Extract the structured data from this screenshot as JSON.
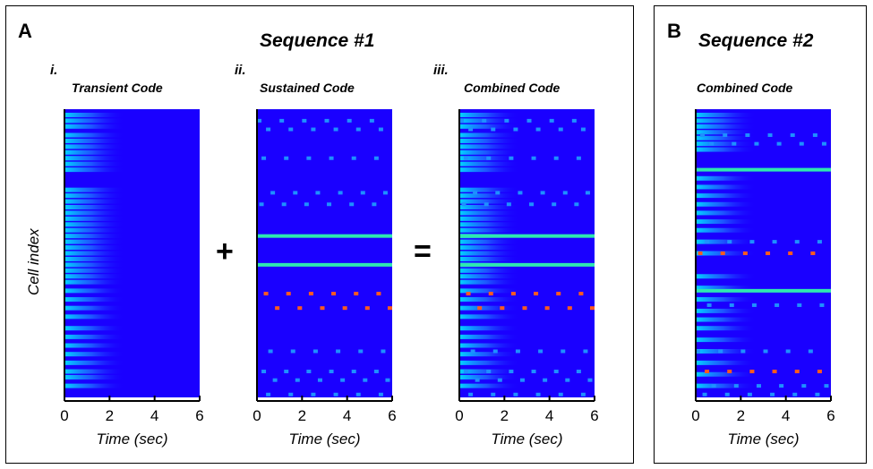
{
  "panels": {
    "a": {
      "letter": "A",
      "title": "Sequence #1"
    },
    "b": {
      "letter": "B",
      "title": "Sequence #2"
    }
  },
  "operators": {
    "plus": "+",
    "equals": "="
  },
  "ylabel": "Cell index",
  "colors": {
    "background": "#1a00ff",
    "transient": "#00e0ff",
    "line": "#2ee8b0",
    "dot_blue": "#1e90ff",
    "dot_red": "#ff5a1f"
  },
  "chart_data": [
    {
      "type": "heatmap",
      "roman": "i.",
      "title": "Transient Code",
      "xlabel": "Time (sec)",
      "xlim": [
        0,
        6
      ],
      "xticks": [
        0,
        2,
        4,
        6
      ],
      "transient_rows": [
        0.02,
        0.04,
        0.06,
        0.09,
        0.11,
        0.13,
        0.15,
        0.17,
        0.19,
        0.21,
        0.28,
        0.3,
        0.32,
        0.34,
        0.36,
        0.38,
        0.4,
        0.42,
        0.44,
        0.46,
        0.48,
        0.5,
        0.52,
        0.54,
        0.56,
        0.58,
        0.6,
        0.63,
        0.66,
        0.69,
        0.72,
        0.76,
        0.79,
        0.82,
        0.85,
        0.88,
        0.91,
        0.93,
        0.96
      ],
      "sustained_lines": [],
      "dot_rows": []
    },
    {
      "type": "heatmap",
      "roman": "ii.",
      "title": "Sustained Code",
      "xlabel": "Time (sec)",
      "xlim": [
        0,
        6
      ],
      "xticks": [
        0,
        2,
        4,
        6
      ],
      "transient_rows": [],
      "sustained_lines": [
        0.44,
        0.54
      ],
      "dot_rows": [
        {
          "y": 0.04,
          "color": "blue",
          "offset": 0.1
        },
        {
          "y": 0.07,
          "color": "blue",
          "offset": 0.5
        },
        {
          "y": 0.17,
          "color": "blue",
          "offset": 0.3
        },
        {
          "y": 0.29,
          "color": "blue",
          "offset": 0.7
        },
        {
          "y": 0.33,
          "color": "blue",
          "offset": 0.2
        },
        {
          "y": 0.64,
          "color": "red",
          "offset": 0.4
        },
        {
          "y": 0.69,
          "color": "red",
          "offset": 0.9
        },
        {
          "y": 0.84,
          "color": "blue",
          "offset": 0.6
        },
        {
          "y": 0.91,
          "color": "blue",
          "offset": 0.3
        },
        {
          "y": 0.94,
          "color": "blue",
          "offset": 0.8
        },
        {
          "y": 0.99,
          "color": "blue",
          "offset": 0.5
        }
      ]
    },
    {
      "type": "heatmap",
      "roman": "iii.",
      "title": "Combined Code",
      "xlabel": "Time (sec)",
      "xlim": [
        0,
        6
      ],
      "xticks": [
        0,
        2,
        4,
        6
      ],
      "transient_rows": [
        0.02,
        0.04,
        0.06,
        0.09,
        0.11,
        0.13,
        0.15,
        0.17,
        0.19,
        0.21,
        0.28,
        0.3,
        0.32,
        0.34,
        0.36,
        0.38,
        0.4,
        0.42,
        0.44,
        0.46,
        0.48,
        0.5,
        0.52,
        0.54,
        0.56,
        0.58,
        0.6,
        0.63,
        0.66,
        0.69,
        0.72,
        0.76,
        0.79,
        0.82,
        0.85,
        0.88,
        0.91,
        0.93,
        0.96
      ],
      "sustained_lines": [
        0.44,
        0.54
      ],
      "dot_rows": [
        {
          "y": 0.04,
          "color": "blue",
          "offset": 0.1
        },
        {
          "y": 0.07,
          "color": "blue",
          "offset": 0.5
        },
        {
          "y": 0.17,
          "color": "blue",
          "offset": 0.3
        },
        {
          "y": 0.29,
          "color": "blue",
          "offset": 0.7
        },
        {
          "y": 0.33,
          "color": "blue",
          "offset": 0.2
        },
        {
          "y": 0.64,
          "color": "red",
          "offset": 0.4
        },
        {
          "y": 0.69,
          "color": "red",
          "offset": 0.9
        },
        {
          "y": 0.84,
          "color": "blue",
          "offset": 0.6
        },
        {
          "y": 0.91,
          "color": "blue",
          "offset": 0.3
        },
        {
          "y": 0.94,
          "color": "blue",
          "offset": 0.8
        },
        {
          "y": 0.99,
          "color": "blue",
          "offset": 0.5
        }
      ]
    },
    {
      "type": "heatmap",
      "roman": "",
      "title": "Combined Code",
      "xlabel": "Time (sec)",
      "xlim": [
        0,
        6
      ],
      "xticks": [
        0,
        2,
        4,
        6
      ],
      "transient_rows": [
        0.02,
        0.04,
        0.06,
        0.08,
        0.1,
        0.12,
        0.14,
        0.24,
        0.27,
        0.3,
        0.33,
        0.36,
        0.39,
        0.42,
        0.46,
        0.5,
        0.58,
        0.62,
        0.66,
        0.7,
        0.73,
        0.76,
        0.8,
        0.84,
        0.88,
        0.92,
        0.96
      ],
      "sustained_lines": [
        0.21,
        0.63
      ],
      "dot_rows": [
        {
          "y": 0.09,
          "color": "blue",
          "offset": 0.3
        },
        {
          "y": 0.12,
          "color": "blue",
          "offset": 0.7
        },
        {
          "y": 0.46,
          "color": "blue",
          "offset": 0.5
        },
        {
          "y": 0.5,
          "color": "red",
          "offset": 0.2
        },
        {
          "y": 0.68,
          "color": "blue",
          "offset": 0.6
        },
        {
          "y": 0.84,
          "color": "blue",
          "offset": 0.1
        },
        {
          "y": 0.91,
          "color": "red",
          "offset": 0.5
        },
        {
          "y": 0.96,
          "color": "blue",
          "offset": 0.8
        },
        {
          "y": 0.99,
          "color": "blue",
          "offset": 0.4
        }
      ]
    }
  ]
}
